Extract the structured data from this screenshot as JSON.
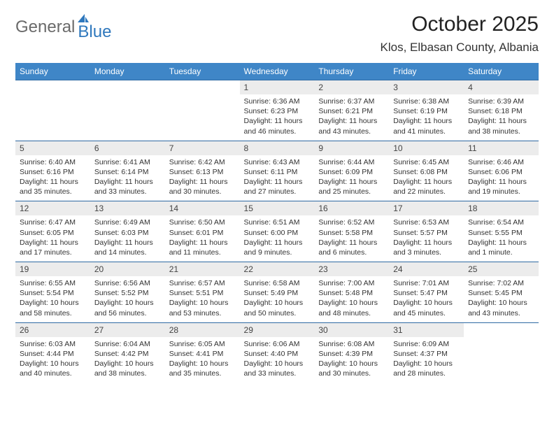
{
  "brand": {
    "part1": "General",
    "part2": "Blue"
  },
  "title": "October 2025",
  "location": "Klos, Elbasan County, Albania",
  "colors": {
    "header_bg": "#3f86c7",
    "header_text": "#ffffff",
    "daynum_bg": "#ececec",
    "row_border": "#2f6aa3",
    "brand_gray": "#6a6a6a",
    "brand_blue": "#2f78bd"
  },
  "weekdays": [
    "Sunday",
    "Monday",
    "Tuesday",
    "Wednesday",
    "Thursday",
    "Friday",
    "Saturday"
  ],
  "weeks": [
    [
      {
        "n": "",
        "sr": "",
        "ss": "",
        "dl": ""
      },
      {
        "n": "",
        "sr": "",
        "ss": "",
        "dl": ""
      },
      {
        "n": "",
        "sr": "",
        "ss": "",
        "dl": ""
      },
      {
        "n": "1",
        "sr": "Sunrise: 6:36 AM",
        "ss": "Sunset: 6:23 PM",
        "dl": "Daylight: 11 hours and 46 minutes."
      },
      {
        "n": "2",
        "sr": "Sunrise: 6:37 AM",
        "ss": "Sunset: 6:21 PM",
        "dl": "Daylight: 11 hours and 43 minutes."
      },
      {
        "n": "3",
        "sr": "Sunrise: 6:38 AM",
        "ss": "Sunset: 6:19 PM",
        "dl": "Daylight: 11 hours and 41 minutes."
      },
      {
        "n": "4",
        "sr": "Sunrise: 6:39 AM",
        "ss": "Sunset: 6:18 PM",
        "dl": "Daylight: 11 hours and 38 minutes."
      }
    ],
    [
      {
        "n": "5",
        "sr": "Sunrise: 6:40 AM",
        "ss": "Sunset: 6:16 PM",
        "dl": "Daylight: 11 hours and 35 minutes."
      },
      {
        "n": "6",
        "sr": "Sunrise: 6:41 AM",
        "ss": "Sunset: 6:14 PM",
        "dl": "Daylight: 11 hours and 33 minutes."
      },
      {
        "n": "7",
        "sr": "Sunrise: 6:42 AM",
        "ss": "Sunset: 6:13 PM",
        "dl": "Daylight: 11 hours and 30 minutes."
      },
      {
        "n": "8",
        "sr": "Sunrise: 6:43 AM",
        "ss": "Sunset: 6:11 PM",
        "dl": "Daylight: 11 hours and 27 minutes."
      },
      {
        "n": "9",
        "sr": "Sunrise: 6:44 AM",
        "ss": "Sunset: 6:09 PM",
        "dl": "Daylight: 11 hours and 25 minutes."
      },
      {
        "n": "10",
        "sr": "Sunrise: 6:45 AM",
        "ss": "Sunset: 6:08 PM",
        "dl": "Daylight: 11 hours and 22 minutes."
      },
      {
        "n": "11",
        "sr": "Sunrise: 6:46 AM",
        "ss": "Sunset: 6:06 PM",
        "dl": "Daylight: 11 hours and 19 minutes."
      }
    ],
    [
      {
        "n": "12",
        "sr": "Sunrise: 6:47 AM",
        "ss": "Sunset: 6:05 PM",
        "dl": "Daylight: 11 hours and 17 minutes."
      },
      {
        "n": "13",
        "sr": "Sunrise: 6:49 AM",
        "ss": "Sunset: 6:03 PM",
        "dl": "Daylight: 11 hours and 14 minutes."
      },
      {
        "n": "14",
        "sr": "Sunrise: 6:50 AM",
        "ss": "Sunset: 6:01 PM",
        "dl": "Daylight: 11 hours and 11 minutes."
      },
      {
        "n": "15",
        "sr": "Sunrise: 6:51 AM",
        "ss": "Sunset: 6:00 PM",
        "dl": "Daylight: 11 hours and 9 minutes."
      },
      {
        "n": "16",
        "sr": "Sunrise: 6:52 AM",
        "ss": "Sunset: 5:58 PM",
        "dl": "Daylight: 11 hours and 6 minutes."
      },
      {
        "n": "17",
        "sr": "Sunrise: 6:53 AM",
        "ss": "Sunset: 5:57 PM",
        "dl": "Daylight: 11 hours and 3 minutes."
      },
      {
        "n": "18",
        "sr": "Sunrise: 6:54 AM",
        "ss": "Sunset: 5:55 PM",
        "dl": "Daylight: 11 hours and 1 minute."
      }
    ],
    [
      {
        "n": "19",
        "sr": "Sunrise: 6:55 AM",
        "ss": "Sunset: 5:54 PM",
        "dl": "Daylight: 10 hours and 58 minutes."
      },
      {
        "n": "20",
        "sr": "Sunrise: 6:56 AM",
        "ss": "Sunset: 5:52 PM",
        "dl": "Daylight: 10 hours and 56 minutes."
      },
      {
        "n": "21",
        "sr": "Sunrise: 6:57 AM",
        "ss": "Sunset: 5:51 PM",
        "dl": "Daylight: 10 hours and 53 minutes."
      },
      {
        "n": "22",
        "sr": "Sunrise: 6:58 AM",
        "ss": "Sunset: 5:49 PM",
        "dl": "Daylight: 10 hours and 50 minutes."
      },
      {
        "n": "23",
        "sr": "Sunrise: 7:00 AM",
        "ss": "Sunset: 5:48 PM",
        "dl": "Daylight: 10 hours and 48 minutes."
      },
      {
        "n": "24",
        "sr": "Sunrise: 7:01 AM",
        "ss": "Sunset: 5:47 PM",
        "dl": "Daylight: 10 hours and 45 minutes."
      },
      {
        "n": "25",
        "sr": "Sunrise: 7:02 AM",
        "ss": "Sunset: 5:45 PM",
        "dl": "Daylight: 10 hours and 43 minutes."
      }
    ],
    [
      {
        "n": "26",
        "sr": "Sunrise: 6:03 AM",
        "ss": "Sunset: 4:44 PM",
        "dl": "Daylight: 10 hours and 40 minutes."
      },
      {
        "n": "27",
        "sr": "Sunrise: 6:04 AM",
        "ss": "Sunset: 4:42 PM",
        "dl": "Daylight: 10 hours and 38 minutes."
      },
      {
        "n": "28",
        "sr": "Sunrise: 6:05 AM",
        "ss": "Sunset: 4:41 PM",
        "dl": "Daylight: 10 hours and 35 minutes."
      },
      {
        "n": "29",
        "sr": "Sunrise: 6:06 AM",
        "ss": "Sunset: 4:40 PM",
        "dl": "Daylight: 10 hours and 33 minutes."
      },
      {
        "n": "30",
        "sr": "Sunrise: 6:08 AM",
        "ss": "Sunset: 4:39 PM",
        "dl": "Daylight: 10 hours and 30 minutes."
      },
      {
        "n": "31",
        "sr": "Sunrise: 6:09 AM",
        "ss": "Sunset: 4:37 PM",
        "dl": "Daylight: 10 hours and 28 minutes."
      },
      {
        "n": "",
        "sr": "",
        "ss": "",
        "dl": ""
      }
    ]
  ]
}
